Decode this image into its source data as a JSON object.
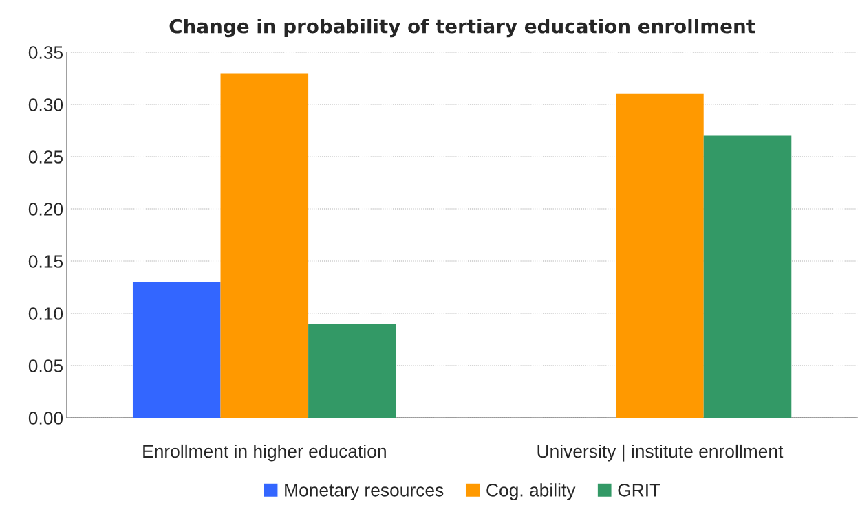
{
  "chart_data": {
    "type": "bar",
    "title": "Change in probability of tertiary education enrollment",
    "categories": [
      "Enrollment in higher education",
      "University | institute enrollment"
    ],
    "series": [
      {
        "name": "Monetary resources",
        "color": "#3366ff",
        "values": [
          0.13,
          null
        ]
      },
      {
        "name": "Cog. ability",
        "color": "#ff9900",
        "values": [
          0.33,
          0.31
        ]
      },
      {
        "name": "GRIT",
        "color": "#339966",
        "values": [
          0.09,
          0.27
        ]
      }
    ],
    "ylim": [
      0,
      0.35
    ],
    "yticks": [
      {
        "value": 0,
        "label": "0.00"
      },
      {
        "value": 0.05,
        "label": "0.05"
      },
      {
        "value": 0.1,
        "label": "0.10"
      },
      {
        "value": 0.15,
        "label": "0.15"
      },
      {
        "value": 0.2,
        "label": "0.20"
      },
      {
        "value": 0.25,
        "label": "0.25"
      },
      {
        "value": 0.3,
        "label": "0.30"
      },
      {
        "value": 0.35,
        "label": "0.35"
      }
    ],
    "grid": "y",
    "legend": "bottom"
  }
}
